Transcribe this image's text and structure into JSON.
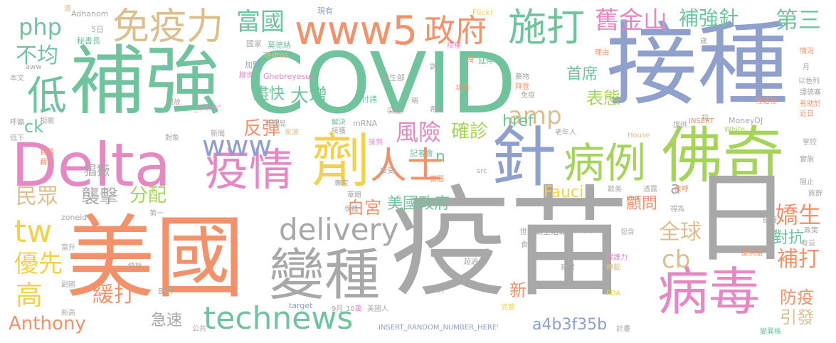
{
  "palette": {
    "gray": "#a8a8a8",
    "blue": "#8fa0cc",
    "green": "#6fc39d",
    "yellow": "#f3d24a",
    "lime": "#a6d45a",
    "pink": "#e588c3",
    "orange": "#f3926a",
    "tan": "#dbc08e"
  },
  "words": {
    "yimiao": "疫苗",
    "jiezhong": "接種",
    "covid": "COVID",
    "meiguo": "美國",
    "buqiang": "補強",
    "delta": "Delta",
    "zhen": "針",
    "fuqi": "佛奇",
    "biangzhong": "變種",
    "ji": "劑",
    "yiqing": "疫情",
    "bingdu": "病毒",
    "ri": "日",
    "www5": "www5",
    "zhengfu": "政府",
    "shida": "施打",
    "mianyili": "免疫力",
    "jiujinshan": "舊金山",
    "buqiangzhen": "補強針",
    "disan": "第三",
    "fuguo": "富國",
    "php": "php",
    "bujun": "不均",
    "di": "低",
    "renshi": "人士",
    "bingli": "病例",
    "www": "www",
    "delivery": "delivery",
    "technews": "technews",
    "tw": "tw",
    "amp": "amp",
    "fengxian": "風險",
    "quezhen": "確診",
    "shouxi": "首席",
    "jinkuai": "盡快",
    "dazeng": "大增",
    "biaotai": "表態",
    "fandan": "反彈",
    "ck": "ck",
    "href": "href",
    "minzhong": "民眾",
    "xiji": "襲擊",
    "fenpei": "分配",
    "baigong": "白宮",
    "meiguozhengfu": "美國政府",
    "fauci": "Fauci",
    "guwen": "顧問",
    "a": "a",
    "n": "n",
    "quanqiu": "全球",
    "cb": "cb",
    "jiaosheng": "嬌生",
    "duikang": "對抗",
    "buda": "補打",
    "youxian": "優先",
    "gao": "高",
    "huanda": "緩打",
    "jisu": "急速",
    "anthony": "Anthony",
    "hash": "a4b3f35b",
    "fangyi": "防疫",
    "yinfa": "引發",
    "xin": "新",
    "changjue": "猖獗",
    "small": {
      "s1": "Adhanom",
      "s2": "現有",
      "s3": "遺",
      "s4": "Flickr",
      "s5": "延伸",
      "s6": "5日",
      "s7": "秘書長",
      "s8": "國家",
      "s9": "莫德納",
      "s10": "Tedros",
      "s11": "aww",
      "s12": "CC",
      "s13": "加緊",
      "s14": "衛生部",
      "s15": "本文",
      "s16": "腳步",
      "s17": "Ghebreyesus",
      "s18": "付諸",
      "s19": "開放",
      "s20": "_blank'",
      "s21": "染疫",
      "s22": "相關",
      "s23": "管理局",
      "s24": "解決",
      "s25": "mRNA",
      "s26": "來源",
      "s27": "新聞",
      "s28": "對象",
      "s29": "接獲",
      "s30": "接到",
      "s31": "記者會",
      "s32": "官員",
      "s33": "藉由",
      "s34": "接受",
      "s35": "專家",
      "s36": "華爾",
      "s37": "src",
      "s38": "保護",
      "s39": "第一",
      "s40": "zoneid",
      "s41": "首圈",
      "s42": "img",
      "s43": "世界衛生組織",
      "s44": "導致",
      "s45": "包含",
      "s46": "食品",
      "s47": "保護力",
      "s48": "轉載",
      "s49": "統計",
      "s50": "超過",
      "s51": "新增",
      "s52": "提供給",
      "s53": "BNT",
      "s54": "例",
      "s55": "完整",
      "s56": "FDA",
      "s57": "target",
      "s58": "9月",
      "s59": "10萬",
      "s60": "美國人",
      "s61": "INSERT_RANDOM_NUMBER_HERE'",
      "s62": "公共",
      "s63": "計畫",
      "s64": "變異株",
      "s65": "新高",
      "s66": "House",
      "s67": "White",
      "s68": "MoneyDJ",
      "s69": "INSERT",
      "s70": "老年人",
      "s71": "提供",
      "s72": "初",
      "s73": "陸透社",
      "s74": "有助於",
      "s75": "近日",
      "s76": "以色列",
      "s77": "譚德塞",
      "s78": "月",
      "s79": "情況",
      "s80": "理由",
      "s81": "歲",
      "s82": "實施",
      "s83": "族群",
      "s84": "阻止",
      "s85": "政策",
      "s86": "有益",
      "s87": "研擬",
      "s88": "視為",
      "s89": "疾呼",
      "s90": "透露",
      "s91": "歐美",
      "s92": "藥物",
      "s93": "拜登",
      "s94": "免疫",
      "s95": "功能",
      "s96": "希望",
      "s97": "稱",
      "s98": "創",
      "s99": "沒",
      "s100": "授權",
      "s101": "呼籲",
      "s102": "低下",
      "s103": "富升",
      "s104": "副國",
      "s105": "掌控"
    }
  }
}
